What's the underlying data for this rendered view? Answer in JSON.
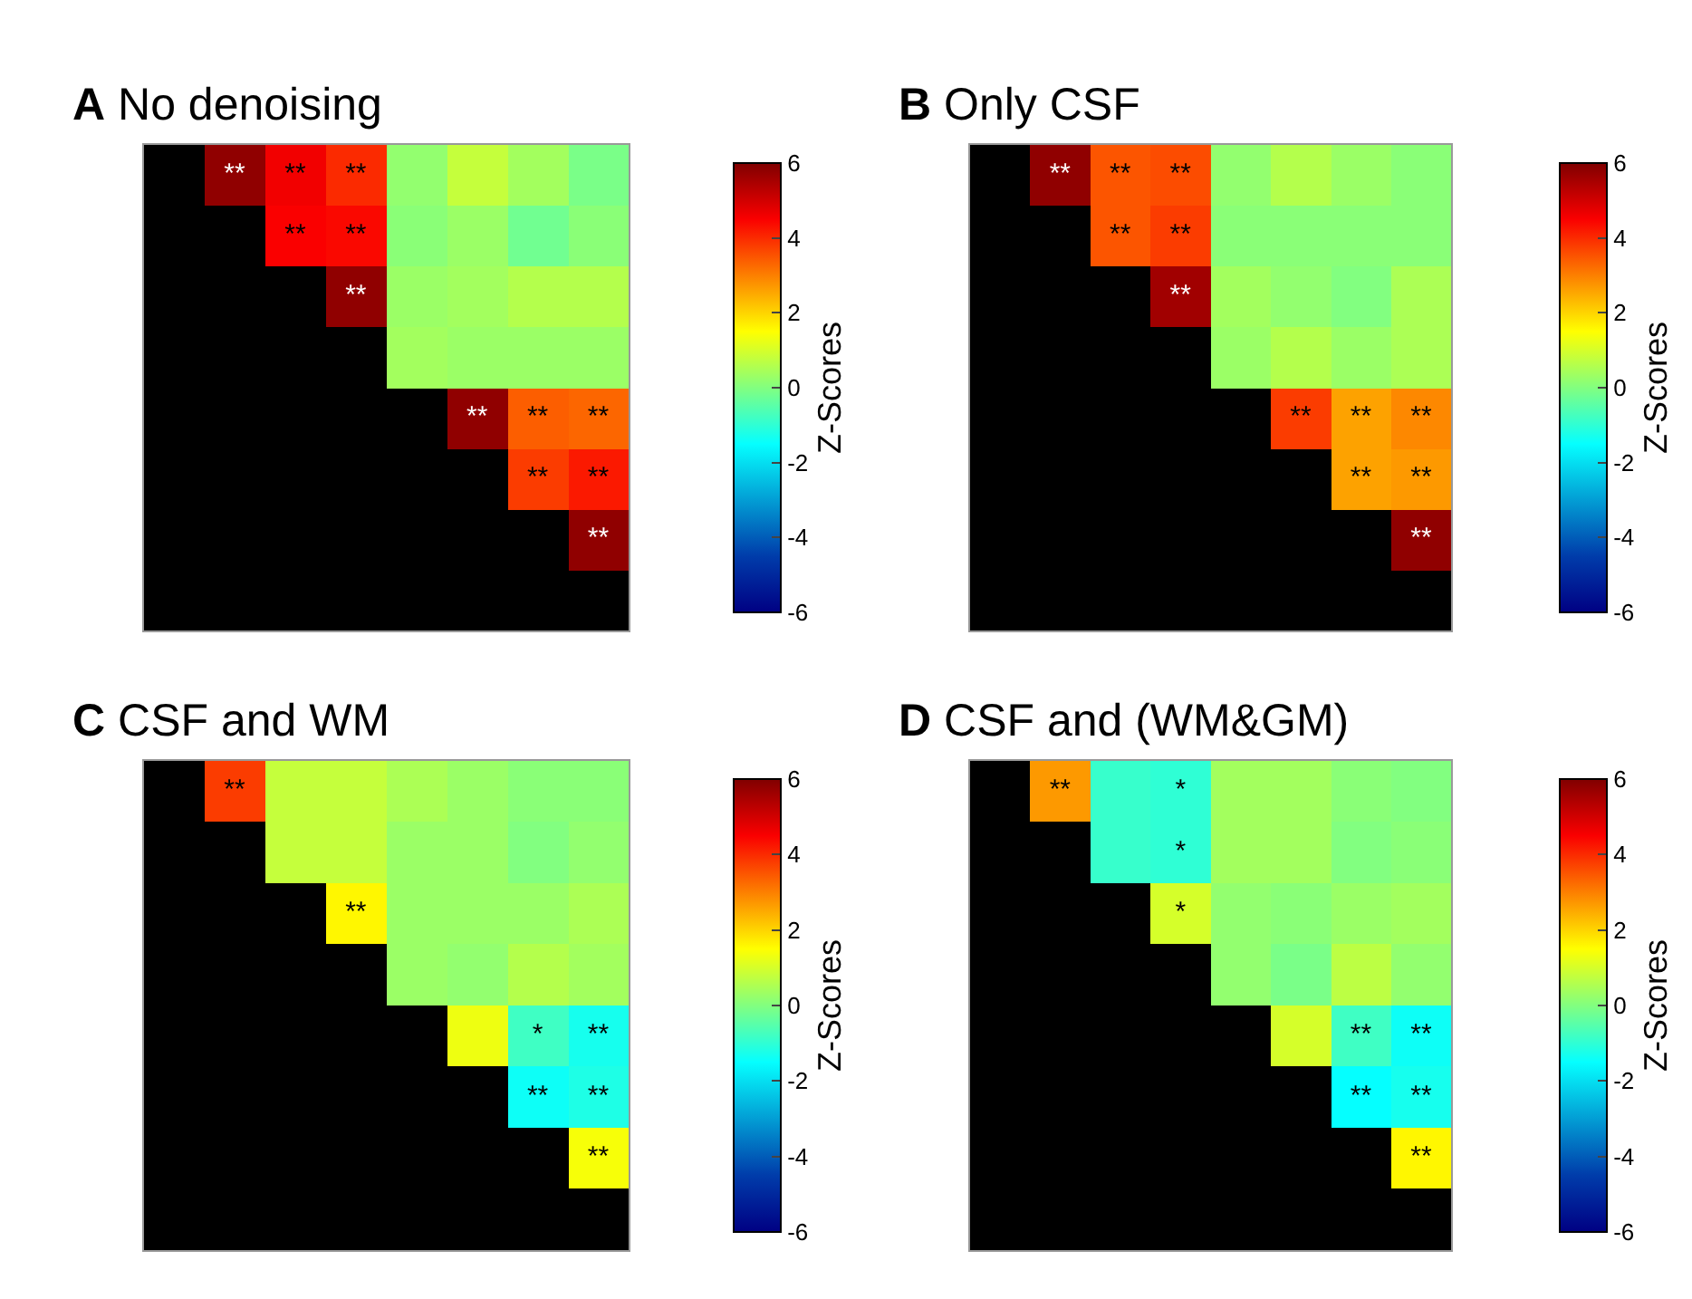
{
  "chart_data": [
    {
      "type": "heatmap",
      "title": "A No denoising",
      "clabel": "Z-Scores",
      "clim": [
        -6,
        6
      ],
      "cticks": [
        -6,
        -4,
        -2,
        0,
        2,
        4,
        6
      ],
      "categories": [
        null,
        null,
        null,
        null,
        null,
        null,
        null,
        null
      ],
      "y_categories": [
        null,
        null,
        null,
        null,
        null,
        null,
        null
      ],
      "cells": [
        [
          null,
          5.8,
          4.6,
          4.0,
          0.2,
          0.8,
          0.4,
          -0.1
        ],
        [
          null,
          null,
          4.5,
          4.4,
          0.1,
          0.3,
          -0.2,
          0.1
        ],
        [
          null,
          null,
          null,
          5.8,
          0.3,
          0.4,
          0.6,
          0.6
        ],
        [
          null,
          null,
          null,
          null,
          0.4,
          0.3,
          0.3,
          0.3
        ],
        [
          null,
          null,
          null,
          null,
          null,
          5.8,
          3.4,
          3.3
        ],
        [
          null,
          null,
          null,
          null,
          null,
          null,
          3.8,
          4.2
        ],
        [
          null,
          null,
          null,
          null,
          null,
          null,
          null,
          5.8
        ]
      ],
      "cell_labels": [
        [
          null,
          "**",
          "**",
          "**",
          null,
          null,
          null,
          null
        ],
        [
          null,
          null,
          "**",
          "**",
          null,
          null,
          null,
          null
        ],
        [
          null,
          null,
          null,
          "**",
          null,
          null,
          null,
          null
        ],
        [
          null,
          null,
          null,
          null,
          null,
          null,
          null,
          null
        ],
        [
          null,
          null,
          null,
          null,
          null,
          "**",
          "**",
          "**"
        ],
        [
          null,
          null,
          null,
          null,
          null,
          null,
          "**",
          "**"
        ],
        [
          null,
          null,
          null,
          null,
          null,
          null,
          null,
          "**"
        ]
      ]
    },
    {
      "type": "heatmap",
      "title": "B Only CSF",
      "clabel": "Z-Scores",
      "clim": [
        -6,
        6
      ],
      "cticks": [
        -6,
        -4,
        -2,
        0,
        2,
        4,
        6
      ],
      "categories": [
        null,
        null,
        null,
        null,
        null,
        null,
        null,
        null
      ],
      "y_categories": [
        null,
        null,
        null,
        null,
        null,
        null,
        null
      ],
      "cells": [
        [
          null,
          5.8,
          3.5,
          3.6,
          0.2,
          0.6,
          0.3,
          0.1
        ],
        [
          null,
          null,
          3.5,
          3.8,
          0.1,
          0.1,
          0.1,
          0.1
        ],
        [
          null,
          null,
          null,
          5.6,
          0.4,
          0.2,
          0.0,
          0.5
        ],
        [
          null,
          null,
          null,
          null,
          0.3,
          0.6,
          0.3,
          0.5
        ],
        [
          null,
          null,
          null,
          null,
          null,
          3.8,
          2.6,
          2.9
        ],
        [
          null,
          null,
          null,
          null,
          null,
          null,
          2.6,
          2.7
        ],
        [
          null,
          null,
          null,
          null,
          null,
          null,
          null,
          5.8
        ]
      ],
      "cell_labels": [
        [
          null,
          "**",
          "**",
          "**",
          null,
          null,
          null,
          null
        ],
        [
          null,
          null,
          "**",
          "**",
          null,
          null,
          null,
          null
        ],
        [
          null,
          null,
          null,
          "**",
          null,
          null,
          null,
          null
        ],
        [
          null,
          null,
          null,
          null,
          null,
          null,
          null,
          null
        ],
        [
          null,
          null,
          null,
          null,
          null,
          "**",
          "**",
          "**"
        ],
        [
          null,
          null,
          null,
          null,
          null,
          null,
          "**",
          "**"
        ],
        [
          null,
          null,
          null,
          null,
          null,
          null,
          null,
          "**"
        ]
      ]
    },
    {
      "type": "heatmap",
      "title": "C CSF and WM",
      "clabel": "Z-Scores",
      "clim": [
        -6,
        6
      ],
      "cticks": [
        -6,
        -4,
        -2,
        0,
        2,
        4,
        6
      ],
      "categories": [
        null,
        null,
        null,
        null,
        null,
        null,
        null,
        null
      ],
      "y_categories": [
        null,
        null,
        null,
        null,
        null,
        null,
        null
      ],
      "cells": [
        [
          null,
          3.8,
          0.8,
          0.8,
          0.5,
          0.3,
          0.1,
          0.1
        ],
        [
          null,
          null,
          0.8,
          0.8,
          0.3,
          0.3,
          0.0,
          0.2
        ],
        [
          null,
          null,
          null,
          1.6,
          0.3,
          0.3,
          0.3,
          0.5
        ],
        [
          null,
          null,
          null,
          null,
          0.3,
          0.2,
          0.6,
          0.4
        ],
        [
          null,
          null,
          null,
          null,
          null,
          1.3,
          -0.8,
          -1.3
        ],
        [
          null,
          null,
          null,
          null,
          null,
          null,
          -1.4,
          -1.2
        ],
        [
          null,
          null,
          null,
          null,
          null,
          null,
          null,
          1.4
        ]
      ],
      "cell_labels": [
        [
          null,
          "**",
          null,
          null,
          null,
          null,
          null,
          null
        ],
        [
          null,
          null,
          null,
          null,
          null,
          null,
          null,
          null
        ],
        [
          null,
          null,
          null,
          "**",
          null,
          null,
          null,
          null
        ],
        [
          null,
          null,
          null,
          null,
          null,
          null,
          null,
          null
        ],
        [
          null,
          null,
          null,
          null,
          null,
          null,
          "*",
          "**"
        ],
        [
          null,
          null,
          null,
          null,
          null,
          null,
          "**",
          "**"
        ],
        [
          null,
          null,
          null,
          null,
          null,
          null,
          null,
          "**"
        ]
      ]
    },
    {
      "type": "heatmap",
      "title": "D CSF and (WM&GM)",
      "clabel": "Z-Scores",
      "clim": [
        -6,
        6
      ],
      "cticks": [
        -6,
        -4,
        -2,
        0,
        2,
        4,
        6
      ],
      "categories": [
        null,
        null,
        null,
        null,
        null,
        null,
        null,
        null
      ],
      "y_categories": [
        null,
        null,
        null,
        null,
        null,
        null,
        null
      ],
      "cells": [
        [
          null,
          2.7,
          -0.9,
          -1.0,
          0.4,
          0.4,
          0.1,
          0.0
        ],
        [
          null,
          null,
          -0.9,
          -1.0,
          0.4,
          0.4,
          0.0,
          0.1
        ],
        [
          null,
          null,
          null,
          1.0,
          0.2,
          0.1,
          0.3,
          0.4
        ],
        [
          null,
          null,
          null,
          null,
          0.2,
          -0.1,
          0.7,
          0.2
        ],
        [
          null,
          null,
          null,
          null,
          null,
          1.0,
          -0.8,
          -1.4
        ],
        [
          null,
          null,
          null,
          null,
          null,
          null,
          -1.5,
          -1.3
        ],
        [
          null,
          null,
          null,
          null,
          null,
          null,
          null,
          1.6
        ]
      ],
      "cell_labels": [
        [
          null,
          "**",
          null,
          "*",
          null,
          null,
          null,
          null
        ],
        [
          null,
          null,
          null,
          "*",
          null,
          null,
          null,
          null
        ],
        [
          null,
          null,
          null,
          "*",
          null,
          null,
          null,
          null
        ],
        [
          null,
          null,
          null,
          null,
          null,
          null,
          null,
          null
        ],
        [
          null,
          null,
          null,
          null,
          null,
          null,
          "**",
          "**"
        ],
        [
          null,
          null,
          null,
          null,
          null,
          null,
          "**",
          "**"
        ],
        [
          null,
          null,
          null,
          null,
          null,
          null,
          null,
          "**"
        ]
      ]
    }
  ]
}
